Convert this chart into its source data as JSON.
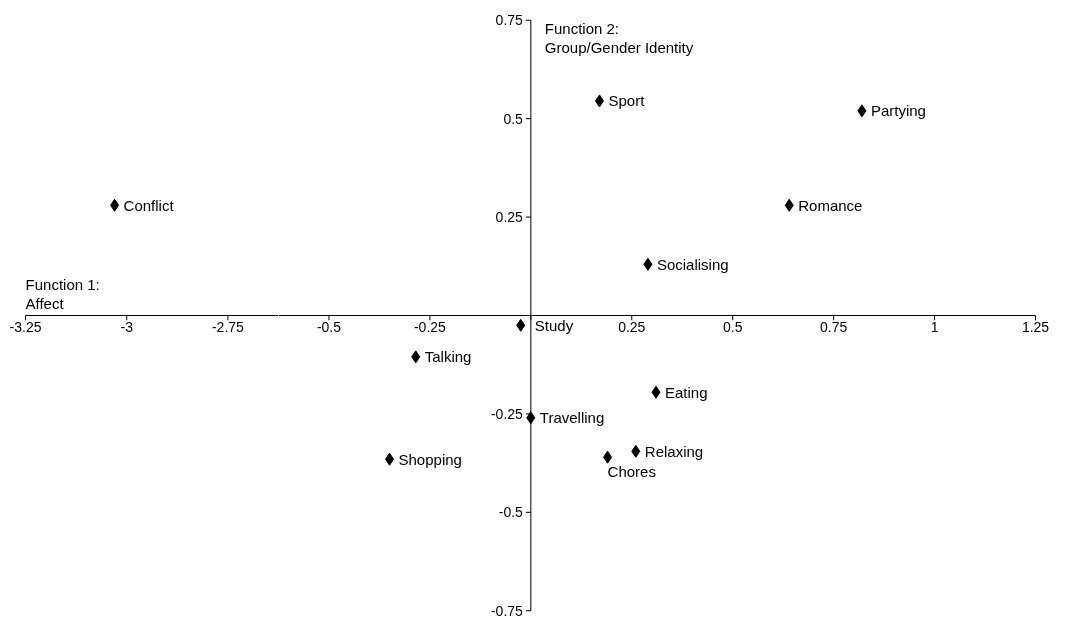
{
  "chart_data": [
    {
      "type": "scatter",
      "xlabel": "Function 1:\nAffect",
      "x": [
        -3.03
      ],
      "values": [
        0.28
      ],
      "color": "#000000",
      "marker": "diamond",
      "grid": false,
      "tick_labels": "x",
      "xlim": [
        -3.25,
        -2.625
      ],
      "ylim": [
        -0.75,
        0.75
      ],
      "xticks": [
        -3.25,
        -3,
        -2.75
      ],
      "annotations": [
        {
          "text": "Conflict",
          "x": -3.03,
          "y": 0.28
        }
      ]
    },
    {
      "type": "scatter",
      "ylabel": "Function 2:\nGroup/Gender Identity",
      "x": [
        0.17,
        0.82,
        0.64,
        0.29,
        -0.025,
        -0.285,
        0.31,
        0.0,
        0.26,
        0.19,
        -0.35
      ],
      "values": [
        0.545,
        0.52,
        0.28,
        0.13,
        -0.025,
        -0.105,
        -0.195,
        -0.26,
        -0.345,
        -0.36,
        -0.365
      ],
      "color": "#000000",
      "marker": "diamond",
      "grid": false,
      "xlim": [
        -0.625,
        1.25
      ],
      "ylim": [
        -0.75,
        0.75
      ],
      "xticks": [
        -0.5,
        -0.25,
        {
          "value": 0,
          "label": null
        },
        0.25,
        0.5,
        0.75,
        1,
        1.25
      ],
      "yticks": [
        -0.75,
        -0.5,
        -0.25,
        {
          "value": 0,
          "label": null
        },
        0.25,
        0.5,
        0.75
      ],
      "annotations": [
        {
          "text": "Sport",
          "x": 0.17,
          "y": 0.545
        },
        {
          "text": "Partying",
          "x": 0.82,
          "y": 0.52
        },
        {
          "text": "Romance",
          "x": 0.64,
          "y": 0.28
        },
        {
          "text": "Socialising",
          "x": 0.29,
          "y": 0.13
        },
        {
          "text": "Study",
          "x": -0.025,
          "y": -0.025
        },
        {
          "text": "Talking",
          "x": -0.285,
          "y": -0.105
        },
        {
          "text": "Eating",
          "x": 0.31,
          "y": -0.195
        },
        {
          "text": "Travelling",
          "x": 0.0,
          "y": -0.26
        },
        {
          "text": "Relaxing",
          "x": 0.26,
          "y": -0.345
        },
        {
          "text": "Chores",
          "x": 0.19,
          "y": -0.36
        },
        {
          "text": "Shopping",
          "x": -0.35,
          "y": -0.365
        }
      ]
    }
  ]
}
